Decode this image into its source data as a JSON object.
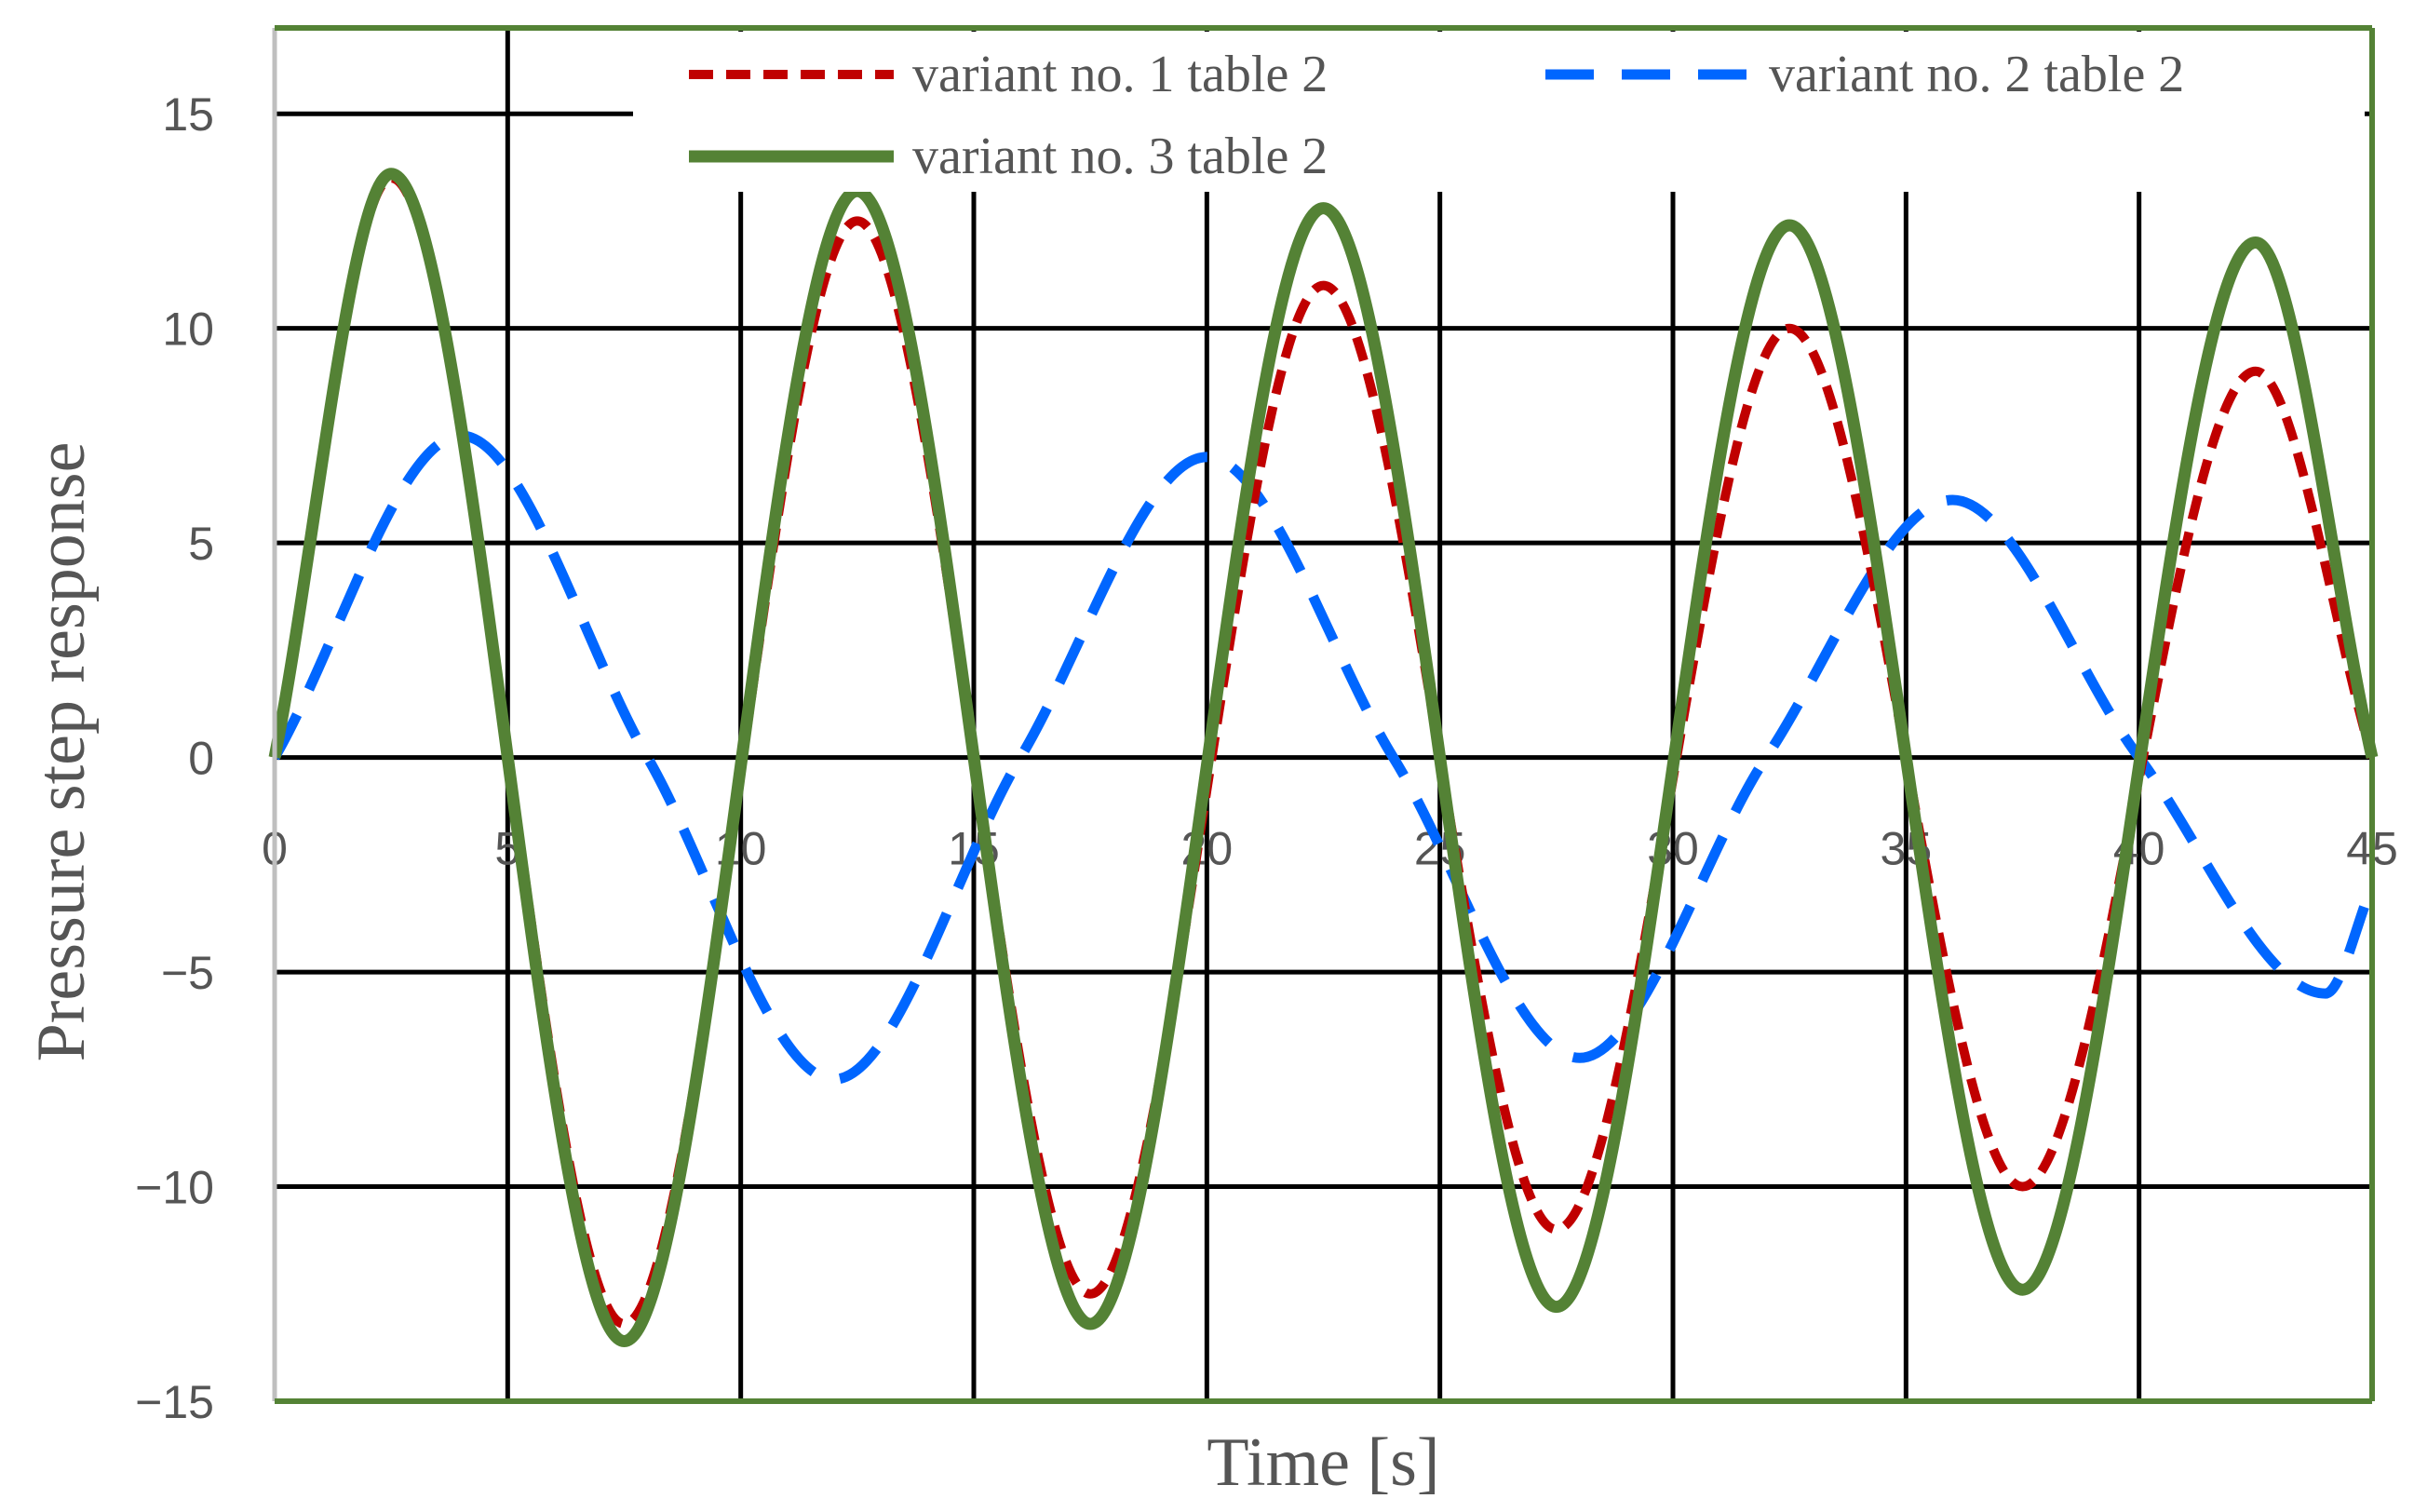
{
  "chart_data": {
    "type": "line",
    "title": "",
    "xlabel": "Time [s]",
    "ylabel": "Pressure step response",
    "xlim": [
      0,
      45
    ],
    "ylim": [
      -15,
      17
    ],
    "x_ticks": [
      0,
      5,
      10,
      15,
      20,
      25,
      30,
      35,
      40,
      45
    ],
    "y_ticks": [
      -15,
      -10,
      -5,
      0,
      5,
      10,
      15
    ],
    "y_tick_labels": [
      "−15",
      "−10",
      "−5",
      "0",
      "5",
      "10",
      "15"
    ],
    "grid": true,
    "legend_position": "top-right",
    "series": [
      {
        "name": "variant no. 1 table 2",
        "color": "#c00000",
        "style": "dotted-dash",
        "x": [
          0,
          2.5,
          7.5,
          12.5,
          17.5,
          22.5,
          27.5,
          32.5,
          37.5,
          42.5,
          45
        ],
        "y": [
          0,
          13.5,
          -13.2,
          12.5,
          -12.5,
          11.0,
          -11.0,
          10.0,
          -10.0,
          9.0,
          0
        ]
      },
      {
        "name": "variant no. 2 table 2",
        "color": "#0066ff",
        "style": "dashed",
        "x": [
          0,
          4,
          8,
          12,
          16,
          20,
          24,
          28,
          32,
          36,
          40,
          44,
          45
        ],
        "y": [
          0,
          7.5,
          0,
          -7.5,
          0,
          7.0,
          0,
          -7.0,
          0,
          6.0,
          0,
          -5.5,
          -3.0
        ]
      },
      {
        "name": "variant no. 3 table 2",
        "color": "#548235",
        "style": "solid",
        "x": [
          0,
          2.5,
          7.5,
          12.5,
          17.5,
          22.5,
          27.5,
          32.5,
          37.5,
          42.5,
          45
        ],
        "y": [
          0,
          13.6,
          -13.6,
          13.2,
          -13.2,
          12.8,
          -12.8,
          12.4,
          -12.4,
          12.0,
          0
        ]
      }
    ]
  }
}
